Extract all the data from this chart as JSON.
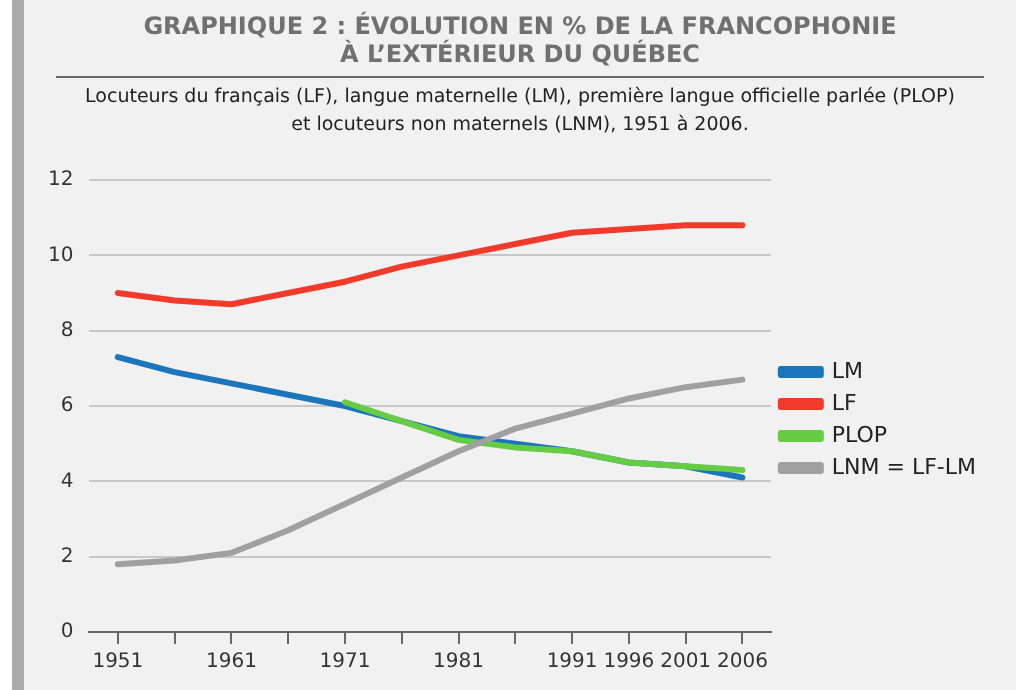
{
  "chart_data": {
    "type": "line",
    "title": "GRAPHIQUE 2 : ÉVOLUTION EN % DE LA FRANCOPHONIE\nÀ L’EXTÉRIEUR DU QUÉBEC",
    "subtitle": "Locuteurs du français (LF), langue maternelle (LM), première langue officielle parlée (PLOP)\net locuteurs non maternels (LNM), 1951 à 2006.",
    "x": [
      1951,
      1956,
      1961,
      1966,
      1971,
      1976,
      1981,
      1986,
      1991,
      1996,
      2001,
      2006
    ],
    "xlim": [
      1948.5,
      2008.5
    ],
    "xticks": [
      1951,
      {
        "value": 1956,
        "label": null
      },
      1961,
      {
        "value": 1966,
        "label": null
      },
      1971,
      {
        "value": 1976,
        "label": null
      },
      1981,
      {
        "value": 1986,
        "label": null
      },
      1991,
      1996,
      2001,
      2006
    ],
    "ylim": [
      0,
      12
    ],
    "yticks": [
      0,
      2,
      4,
      6,
      8,
      10,
      12
    ],
    "grid": "y",
    "legend": "right",
    "marker": "none",
    "line_style": "solid",
    "series": [
      {
        "name": "LM",
        "color": "#1a75bb",
        "values": [
          7.3,
          6.9,
          6.6,
          6.3,
          6.0,
          5.6,
          5.2,
          5.0,
          4.8,
          4.5,
          4.4,
          4.1
        ]
      },
      {
        "name": "LF",
        "color": "#f23a2a",
        "values": [
          9.0,
          8.8,
          8.7,
          9.0,
          9.3,
          9.7,
          10.0,
          10.3,
          10.6,
          10.7,
          10.8,
          10.8
        ]
      },
      {
        "name": "PLOP",
        "color": "#66cc44",
        "values": [
          null,
          null,
          null,
          null,
          6.1,
          5.6,
          5.1,
          4.9,
          4.8,
          4.5,
          4.4,
          4.3
        ]
      },
      {
        "name": "LNM = LF-LM",
        "color": "#a0a0a0",
        "values": [
          1.8,
          1.9,
          2.1,
          2.7,
          3.4,
          4.1,
          4.8,
          5.4,
          5.8,
          6.2,
          6.5,
          6.7
        ]
      }
    ]
  }
}
